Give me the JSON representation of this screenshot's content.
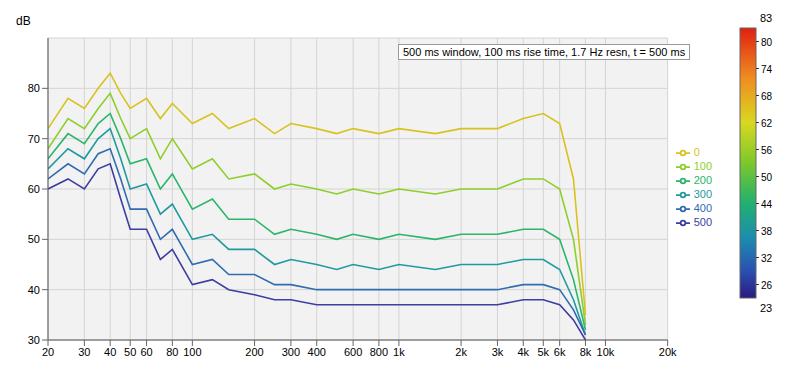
{
  "chart_data": {
    "type": "line",
    "title": "500 ms window, 100 ms rise time, 1.7 Hz resn, t = 500 ms",
    "y_label": "dB",
    "log": "x",
    "grid": true,
    "legend": "right",
    "xlim": [
      20,
      20000
    ],
    "xticks": [
      20,
      30,
      40,
      50,
      60,
      80,
      100,
      200,
      300,
      400,
      600,
      800,
      {
        "value": 1000,
        "label": "1k"
      },
      {
        "value": 2000,
        "label": "2k"
      },
      {
        "value": 3000,
        "label": "3k"
      },
      {
        "value": 4000,
        "label": "4k"
      },
      {
        "value": 5000,
        "label": "5k"
      },
      {
        "value": 6000,
        "label": "6k"
      },
      {
        "value": 8000,
        "label": "8k"
      },
      {
        "value": 10000,
        "label": "10k"
      },
      {
        "value": 20000,
        "label": "20k"
      }
    ],
    "ylim": [
      30,
      90
    ],
    "yticks": [
      30,
      40,
      50,
      60,
      70,
      80
    ],
    "x": [
      20,
      25,
      30,
      35,
      40,
      45,
      50,
      60,
      70,
      80,
      100,
      125,
      150,
      200,
      250,
      300,
      400,
      500,
      600,
      800,
      1000,
      1500,
      2000,
      3000,
      4000,
      5000,
      6000,
      7000,
      8000
    ],
    "series": [
      {
        "name": "0",
        "color": "#d8c21e",
        "values": [
          72,
          78,
          76,
          80,
          83,
          79,
          76,
          78,
          74,
          77,
          73,
          75,
          72,
          74,
          71,
          73,
          72,
          71,
          72,
          71,
          72,
          71,
          72,
          72,
          74,
          75,
          73,
          62,
          35
        ]
      },
      {
        "name": "100",
        "color": "#8ccf2a",
        "values": [
          68,
          74,
          72,
          76,
          79,
          74,
          70,
          72,
          66,
          70,
          64,
          66,
          62,
          63,
          60,
          61,
          60,
          59,
          60,
          59,
          60,
          59,
          60,
          60,
          62,
          62,
          60,
          50,
          33
        ]
      },
      {
        "name": "200",
        "color": "#2ab56a",
        "values": [
          66,
          71,
          69,
          73,
          75,
          70,
          65,
          66,
          60,
          63,
          56,
          58,
          54,
          54,
          51,
          52,
          51,
          50,
          51,
          50,
          51,
          50,
          51,
          51,
          52,
          52,
          50,
          42,
          32
        ]
      },
      {
        "name": "300",
        "color": "#1f9aa0",
        "values": [
          64,
          68,
          66,
          70,
          72,
          66,
          60,
          61,
          55,
          57,
          50,
          51,
          48,
          48,
          45,
          46,
          45,
          44,
          45,
          44,
          45,
          44,
          45,
          45,
          46,
          46,
          44,
          38,
          31
        ]
      },
      {
        "name": "400",
        "color": "#2f6cb0",
        "values": [
          62,
          65,
          63,
          67,
          68,
          62,
          56,
          56,
          50,
          52,
          45,
          46,
          43,
          43,
          41,
          41,
          40,
          40,
          40,
          40,
          40,
          40,
          40,
          40,
          41,
          41,
          40,
          36,
          31
        ]
      },
      {
        "name": "500",
        "color": "#3a3fa0",
        "values": [
          60,
          62,
          60,
          64,
          65,
          58,
          52,
          52,
          46,
          48,
          41,
          42,
          40,
          39,
          38,
          38,
          37,
          37,
          37,
          37,
          37,
          37,
          37,
          37,
          38,
          38,
          37,
          34,
          30
        ]
      }
    ],
    "colorbar": {
      "range": [
        23,
        83
      ],
      "ticks": [
        26,
        32,
        38,
        44,
        50,
        56,
        62,
        68,
        74,
        80
      ]
    }
  }
}
